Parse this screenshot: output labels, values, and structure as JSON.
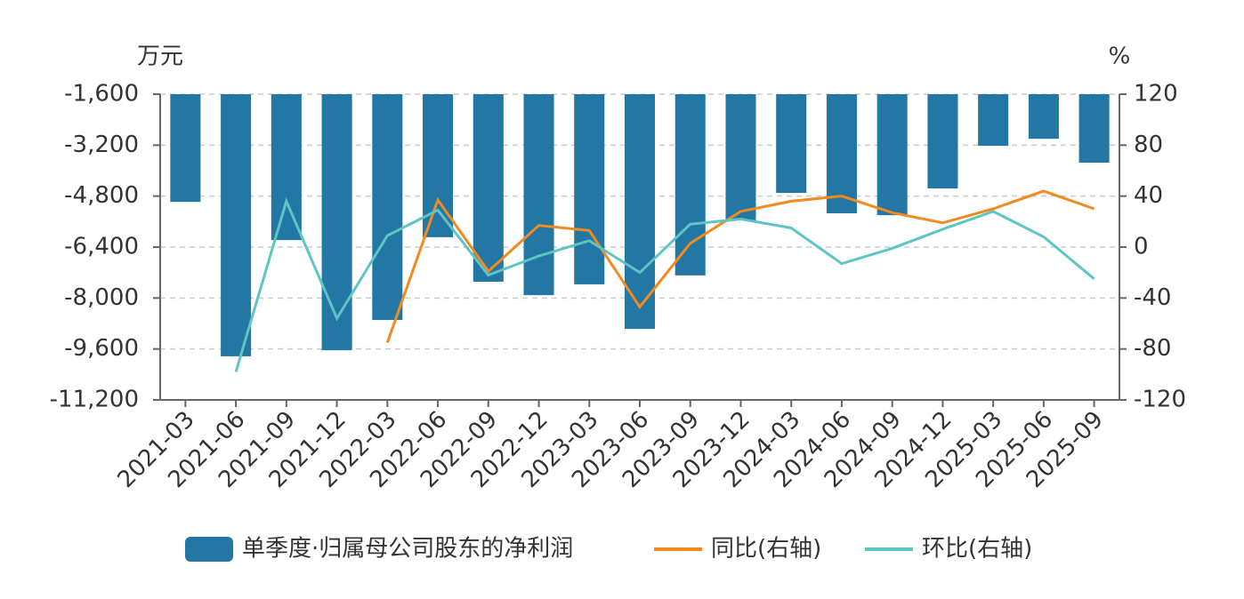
{
  "chart_data": {
    "type": "bar-line",
    "y_label": "万元",
    "y2_label": "%",
    "categories": [
      "2021-03",
      "2021-06",
      "2021-09",
      "2021-12",
      "2022-03",
      "2022-06",
      "2022-09",
      "2022-12",
      "2023-03",
      "2023-06",
      "2023-09",
      "2023-12",
      "2024-03",
      "2024-06",
      "2024-09",
      "2024-12",
      "2025-03",
      "2025-06",
      "2025-09"
    ],
    "series": [
      {
        "name": "单季度·归属母公司股东的净利润",
        "type": "bar",
        "color": "#2277a4",
        "values": [
          -4980,
          -9830,
          -6180,
          -9640,
          -8690,
          -6090,
          -7490,
          -7910,
          -7570,
          -8970,
          -7290,
          -5560,
          -4700,
          -5340,
          -5400,
          -4560,
          -3220,
          -3000,
          -3750
        ]
      },
      {
        "name": "同比(右轴)",
        "type": "line",
        "axis": "y2",
        "color": "#f28a1e",
        "values": [
          null,
          null,
          null,
          null,
          -75,
          37,
          -19,
          17,
          13,
          -47,
          3,
          28,
          36,
          40,
          27,
          19,
          30,
          44,
          30
        ]
      },
      {
        "name": "环比(右轴)",
        "type": "line",
        "axis": "y2",
        "color": "#5ec4c4",
        "values": [
          null,
          -98,
          36,
          -56,
          9,
          29,
          -22,
          -7,
          5,
          -20,
          18,
          22,
          15,
          -13,
          -1,
          14,
          28,
          8,
          -25
        ]
      }
    ],
    "ylim": [
      -11200,
      -1600
    ],
    "yticks": [
      {
        "value": -11200,
        "label": "-11,200"
      },
      {
        "value": -9600,
        "label": "-9,600"
      },
      {
        "value": -8000,
        "label": "-8,000"
      },
      {
        "value": -6400,
        "label": "-6,400"
      },
      {
        "value": -4800,
        "label": "-4,800"
      },
      {
        "value": -3200,
        "label": "-3,200"
      },
      {
        "value": -1600,
        "label": "-1,600"
      }
    ],
    "y2lim": [
      -120,
      120
    ],
    "y2ticks": [
      -120,
      -80,
      -40,
      0,
      40,
      80,
      120
    ],
    "grid": true
  }
}
